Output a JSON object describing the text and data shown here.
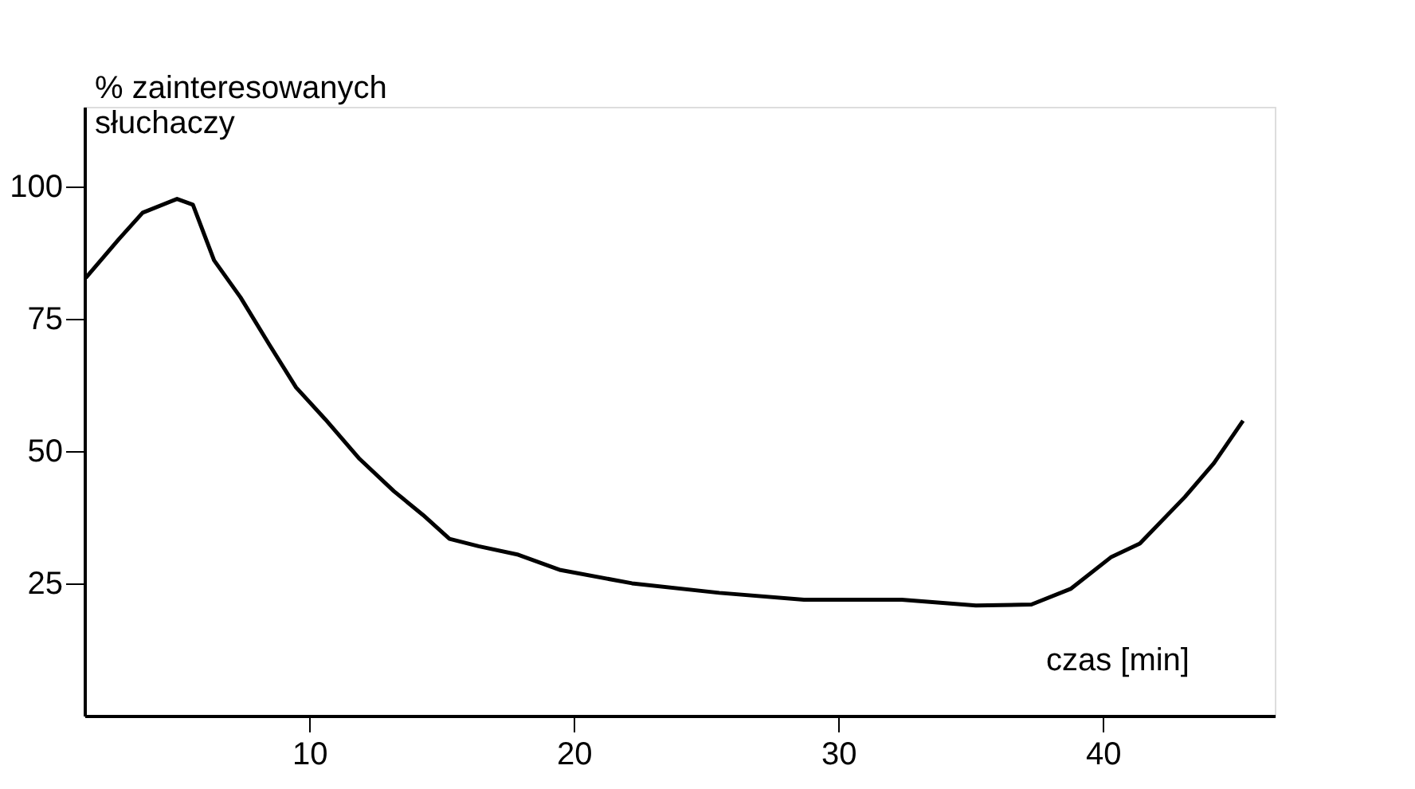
{
  "chart_data": {
    "type": "line",
    "xlabel": "czas [min]",
    "ylabel": "% zainteresowanych\nsłuchaczy",
    "x": [
      1.55,
      2.8,
      3.7,
      5.0,
      5.6,
      6.4,
      7.4,
      8.5,
      9.5,
      10.6,
      11.9,
      13.2,
      14.3,
      15.3,
      16.4,
      17.9,
      19.5,
      22.2,
      25.5,
      28.7,
      32.4,
      35.2,
      37.3,
      38.8,
      40.3,
      41.4,
      43.1,
      44.2,
      45.3
    ],
    "series": [
      {
        "color": "#000000",
        "values": [
          82.7,
          90,
          95,
          97.6,
          96.5,
          86,
          79,
          70,
          62,
          56,
          48.5,
          42.4,
          37.9,
          33.4,
          32,
          30.4,
          27.5,
          25,
          23.2,
          21.9,
          21.9,
          20.8,
          21,
          24,
          29.9,
          32.5,
          41.3,
          47.7,
          55.7
        ]
      }
    ],
    "xlim": [
      1.5,
      46.5
    ],
    "ylim": [
      0,
      115
    ],
    "xticks": [
      10,
      20,
      30,
      40
    ],
    "yticks": [
      25,
      50,
      75,
      100
    ],
    "grid": false,
    "legend": false,
    "marker": "none",
    "line_style": "solid"
  }
}
